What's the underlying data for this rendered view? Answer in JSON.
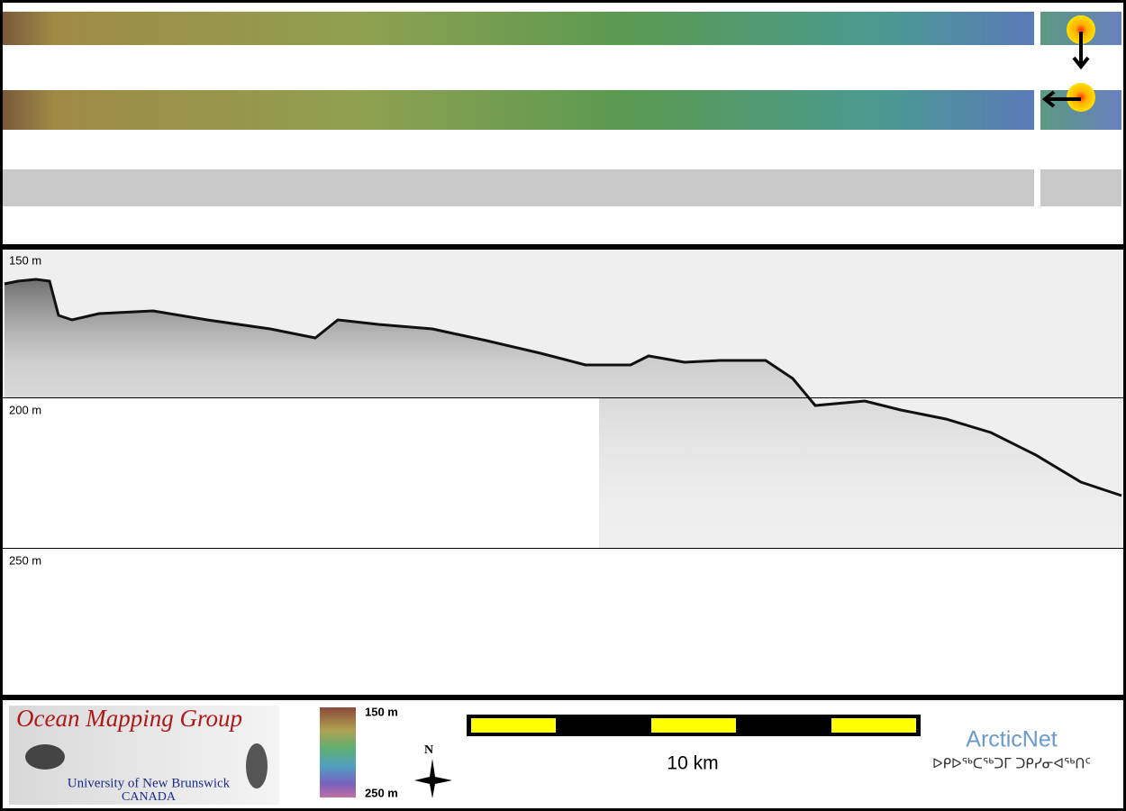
{
  "profile": {
    "depth_labels": [
      "150 m",
      "200 m",
      "250 m"
    ]
  },
  "logo": {
    "title": "Ocean Mapping Group",
    "university": "University of New Brunswick",
    "country": "CANADA"
  },
  "colorbar": {
    "top_label": "150 m",
    "bottom_label": "250 m"
  },
  "compass": {
    "label": "N"
  },
  "scale_bar": {
    "label": "10 km"
  },
  "partner": {
    "name": "ArcticNet",
    "syllabics": "ᐅᑭᐅᖅᑕᖅᑐᒥ ᑐᑭᓯᓂᐊᖅᑎᑦ"
  }
}
